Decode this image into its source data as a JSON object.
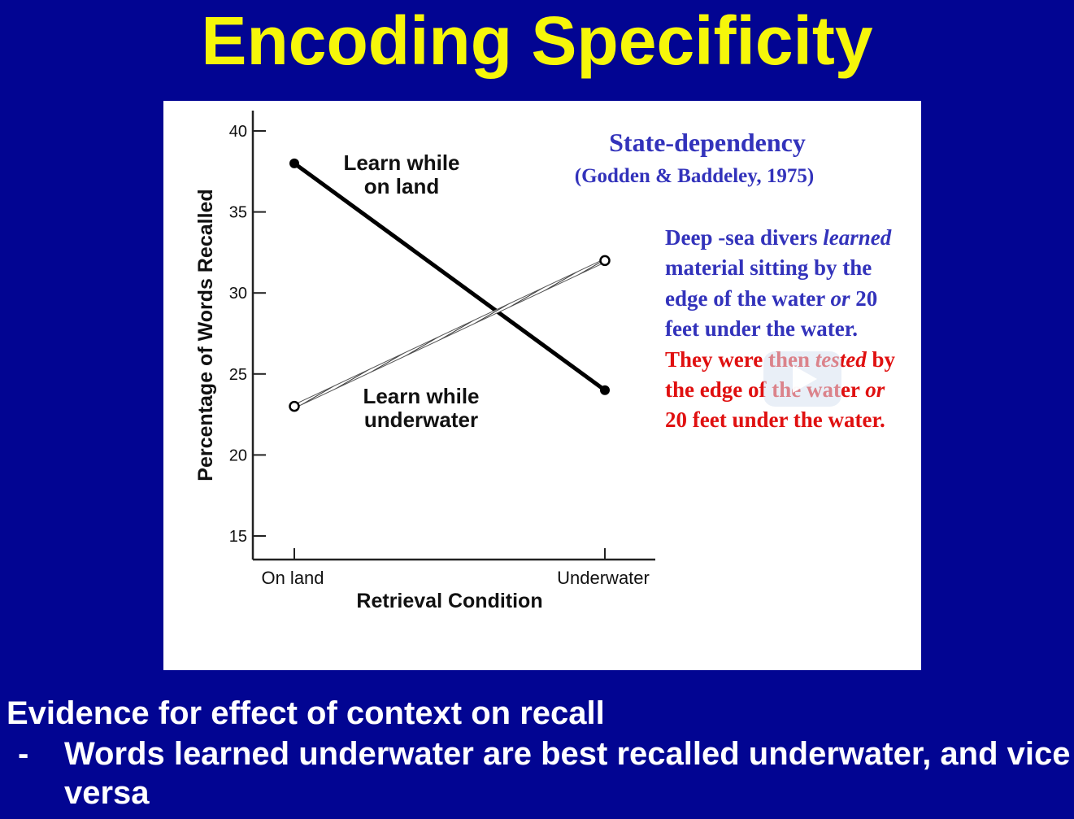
{
  "slide": {
    "title": "Encoding Specificity",
    "caption": "Evidence for effect of context on recall",
    "bullet_marker": "-",
    "bullet_text": "Words learned underwater are best recalled underwater, and vice versa"
  },
  "annotation": {
    "heading": "State-dependency",
    "citation": "(Godden & Baddeley, 1975)",
    "body_part1": "Deep -sea divers",
    "body_italic1": "learned",
    "body_part2": "material sitting by the edge of the water",
    "body_italic2": "or",
    "body_part3": "20 feet under the water.",
    "body_red_part1": "They were then",
    "body_red_italic1": "tested",
    "body_red_part2": "by the edge of the water",
    "body_red_italic2": "or",
    "body_red_part3": "20 feet under the water.",
    "colors": {
      "heading": "#3333bb",
      "blue_text": "#3333bb",
      "red_text": "#e01010"
    }
  },
  "chart_data": {
    "type": "line",
    "categories": [
      "On land",
      "Underwater"
    ],
    "series": [
      {
        "name": "Learn while on land",
        "label_lines": [
          "Learn while",
          "on land"
        ],
        "values": [
          38,
          24
        ],
        "style": "solid",
        "marker": "filled"
      },
      {
        "name": "Learn while underwater",
        "label_lines": [
          "Learn while",
          "underwater"
        ],
        "values": [
          23,
          32
        ],
        "style": "hatched",
        "marker": "open"
      }
    ],
    "xlabel": "Retrieval Condition",
    "ylabel": "Percentage of Words Recalled",
    "ylim": [
      15,
      40
    ],
    "yticks": [
      15,
      20,
      25,
      30,
      35,
      40
    ],
    "grid": false,
    "legend": "inline labels"
  },
  "overlay": {
    "icon": "play-icon"
  }
}
